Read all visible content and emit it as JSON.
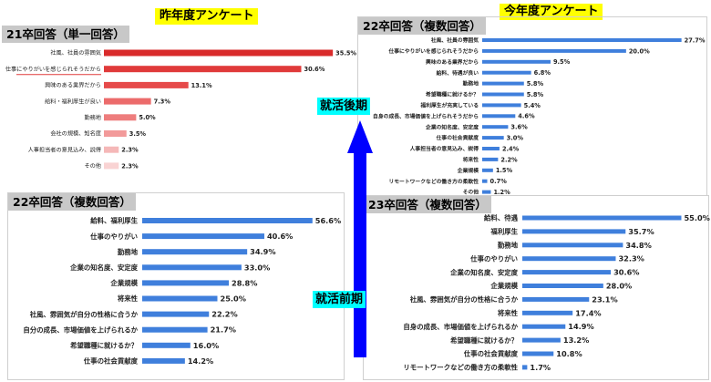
{
  "headings": {
    "last_year": "昨年度アンケート",
    "this_year": "今年度アンケート",
    "later_phase": "就活後期",
    "early_phase": "就活前期"
  },
  "chart_data": [
    {
      "id": "c21",
      "type": "bar",
      "orientation": "horizontal",
      "title": "21卒回答（単一回答）",
      "categories": [
        "社風、社員の雰囲気",
        "仕事にやりがいを感じられそうだから",
        "興味のある業界だから",
        "給料・福利厚生が良い",
        "勤務地",
        "会社の規模、知名度",
        "人事担当者の意見込み、説得",
        "その他"
      ],
      "values": [
        35.5,
        30.6,
        13.1,
        7.3,
        5.0,
        3.5,
        2.3,
        2.3
      ],
      "value_labels": [
        "35.5%",
        "30.6%",
        "13.1%",
        "7.3%",
        "5.0%",
        "3.5%",
        "2.3%",
        "2.3%"
      ],
      "colors": [
        "#d92b2b",
        "#e03a3a",
        "#e64a4a",
        "#ec6b6b",
        "#ee7d7d",
        "#f29a9a",
        "#f5b8b8",
        "#f9d3d3"
      ],
      "xlim": [
        0,
        40
      ]
    },
    {
      "id": "c22a",
      "type": "bar",
      "orientation": "horizontal",
      "title": "22卒回答（複数回答）",
      "categories": [
        "給料、福利厚生",
        "仕事のやりがい",
        "勤務地",
        "企業の知名度、安定度",
        "企業規模",
        "将来性",
        "社風、雰囲気が自分の性格に合うか",
        "自分の成長、市場価値を上げられるか",
        "希望職種に就けるか？",
        "仕事の社会貢献度"
      ],
      "values": [
        56.6,
        40.6,
        34.9,
        33.0,
        28.8,
        25.0,
        22.2,
        21.7,
        16.0,
        14.2
      ],
      "value_labels": [
        "56.6%",
        "40.6%",
        "34.9%",
        "33.0%",
        "28.8%",
        "25.0%",
        "22.2%",
        "21.7%",
        "16.0%",
        "14.2%"
      ],
      "color": "#3f7fdc",
      "xlim": [
        0,
        60
      ]
    },
    {
      "id": "c22b",
      "type": "bar",
      "orientation": "horizontal",
      "title": "22卒回答（複数回答）",
      "categories": [
        "社風、社員の雰囲気",
        "仕事にやりがいを感じられそうだから",
        "興味のある業界だから",
        "給料、待遇が良い",
        "勤務地",
        "希望職種に就けるか？",
        "福利厚生が充実している",
        "自身の成長、市場価値を上げられそうだから",
        "企業の知名度、安定度",
        "仕事の社会貢献度",
        "人事担当者の意見込み、説得",
        "将来性",
        "企業規模",
        "リモートワークなどの働き方の柔軟性",
        "その他"
      ],
      "values": [
        27.7,
        20.0,
        9.5,
        6.8,
        5.8,
        5.8,
        5.4,
        4.6,
        3.6,
        3.0,
        2.4,
        2.2,
        1.5,
        0.7,
        1.2
      ],
      "value_labels": [
        "27.7%",
        "20.0%",
        "9.5%",
        "6.8%",
        "5.8%",
        "5.8%",
        "5.4%",
        "4.6%",
        "3.6%",
        "3.0%",
        "2.4%",
        "2.2%",
        "1.5%",
        "0.7%",
        "1.2%"
      ],
      "color": "#3f7fdc",
      "xlim": [
        0,
        28
      ]
    },
    {
      "id": "c23",
      "type": "bar",
      "orientation": "horizontal",
      "title": "23卒回答（複数回答）",
      "categories": [
        "給料、待遇",
        "福利厚生",
        "勤務地",
        "仕事のやりがい",
        "企業の知名度、安定度",
        "企業規模",
        "社風、雰囲気が自分の性格に合うか",
        "将来性",
        "自身の成長、市場価値を上げられるか",
        "希望職種に就けるか？",
        "仕事の社会貢献度",
        "リモートワークなどの働き方の柔軟性"
      ],
      "values": [
        55.0,
        35.7,
        34.8,
        32.3,
        30.6,
        28.0,
        23.1,
        17.4,
        14.9,
        13.2,
        10.8,
        1.7
      ],
      "value_labels": [
        "55.0%",
        "35.7%",
        "34.8%",
        "32.3%",
        "30.6%",
        "28.0%",
        "23.1%",
        "17.4%",
        "14.9%",
        "13.2%",
        "10.8%",
        "1.7%"
      ],
      "color": "#3f7fdc",
      "xlim": [
        0,
        58
      ]
    }
  ]
}
